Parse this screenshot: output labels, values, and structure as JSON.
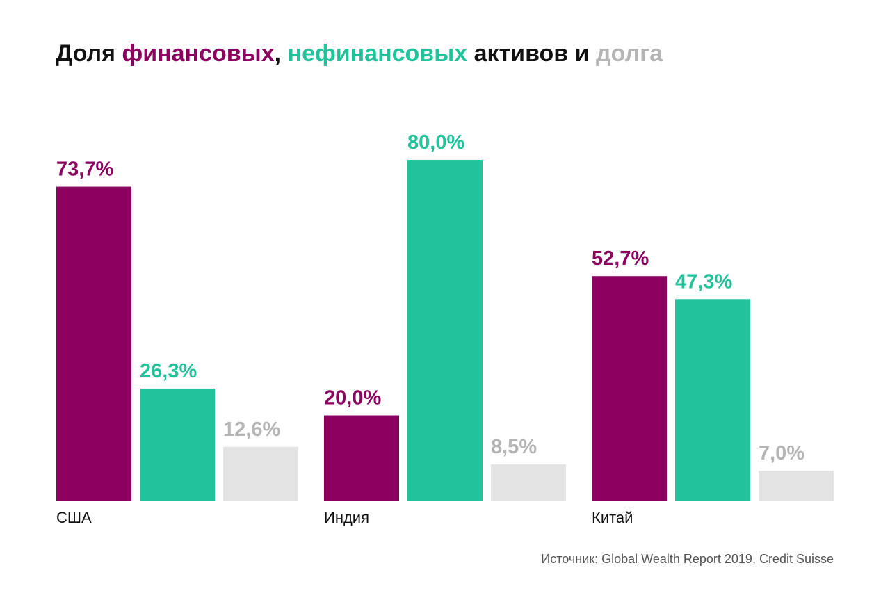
{
  "chart_data": {
    "type": "bar",
    "title_parts": [
      {
        "text": "Доля ",
        "color": "#111111"
      },
      {
        "text": "финансовых",
        "color": "#8C005F"
      },
      {
        "text": ", ",
        "color": "#111111"
      },
      {
        "text": "нефинансовых",
        "color": "#22C39B"
      },
      {
        "text": " активов и ",
        "color": "#111111"
      },
      {
        "text": "долга",
        "color": "#B5B5B5"
      }
    ],
    "categories": [
      "США",
      "Индия",
      "Китай"
    ],
    "series": [
      {
        "color": "#8C005F",
        "label_color": "#8C005F",
        "values": [
          73.7,
          20.0,
          52.7
        ],
        "labels": [
          "73,7%",
          "20,0%",
          "52,7%"
        ]
      },
      {
        "color": "#22C39B",
        "label_color": "#22C39B",
        "values": [
          26.3,
          80.0,
          47.3
        ],
        "labels": [
          "26,3%",
          "80,0%",
          "47,3%"
        ]
      },
      {
        "color": "#E4E4E4",
        "label_color": "#B5B5B5",
        "values": [
          12.6,
          8.5,
          7.0
        ],
        "labels": [
          "12,6%",
          "8,5%",
          "7,0%"
        ]
      }
    ],
    "ylim": [
      0,
      80
    ],
    "grid": false,
    "legend": "none"
  },
  "source": "Источник: Global Wealth Report 2019, Credit Suisse"
}
